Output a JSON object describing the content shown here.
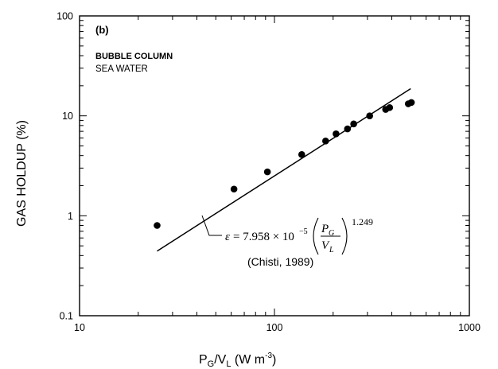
{
  "chart_data": {
    "type": "scatter",
    "panel_label": "(b)",
    "legend": {
      "line1": "BUBBLE COLUMN",
      "line2": "SEA WATER",
      "placement": "top-left"
    },
    "xscale": "log",
    "yscale": "log",
    "xlim": [
      10,
      1000
    ],
    "ylim": [
      0.1,
      100
    ],
    "x_ticks": [
      "10",
      "100",
      "1000"
    ],
    "y_ticks": [
      "0.1",
      "1",
      "10",
      "100"
    ],
    "xlabel": {
      "main": "P",
      "sub1": "G",
      "mid": "/V",
      "sub2": "L",
      "unit": " (W m",
      "sup": "-3",
      "close": ")"
    },
    "ylabel": "GAS HOLDUP (%)",
    "grid": false,
    "series": [
      {
        "marker": "filled-circle",
        "x": [
          25,
          62,
          92,
          138,
          183,
          207,
          237,
          255,
          308,
          372,
          390,
          486,
          504
        ],
        "y": [
          0.8,
          1.85,
          2.75,
          4.1,
          5.6,
          6.6,
          7.4,
          8.3,
          10.0,
          11.6,
          12.1,
          13.2,
          13.6
        ]
      }
    ],
    "fit_line": {
      "coefficient": 7.958e-05,
      "exponent": 1.249,
      "x_range": [
        25,
        500
      ]
    },
    "annotation": {
      "eps": "ε",
      "eq_coef": " = 7.958 × 10",
      "eq_exp": "−5",
      "eq_pg": "P",
      "eq_pg_sub": "G",
      "eq_vl": "V",
      "eq_vl_sub": "L",
      "eq_power": "1.249",
      "reference": "(Chisti, 1989)"
    }
  }
}
